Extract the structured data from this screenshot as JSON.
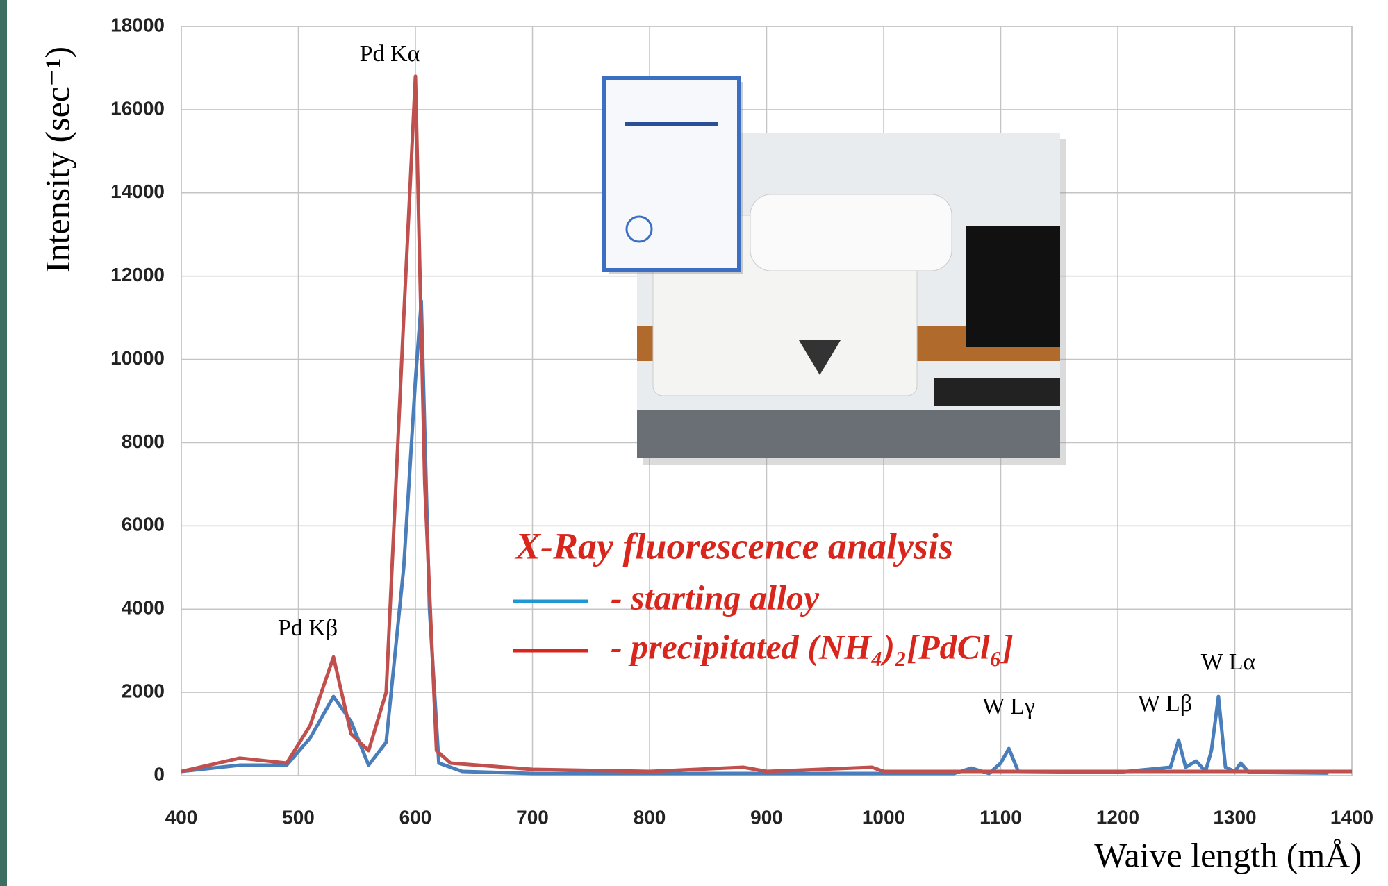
{
  "chart_data": {
    "type": "line",
    "xlabel": "Waive length (mÅ)",
    "ylabel": "Intensity (sec⁻¹)",
    "legend_title": "X-Ray fluorescence analysis",
    "annotations": [
      "Pd Kα",
      "Pd Kβ",
      "W Lγ",
      "W Lβ",
      "W Lα"
    ],
    "xlim": [
      400,
      1400
    ],
    "ylim": [
      0,
      18000
    ],
    "xticks": [
      400,
      500,
      600,
      700,
      800,
      900,
      1000,
      1100,
      1200,
      1300,
      1400
    ],
    "yticks": [
      0,
      2000,
      4000,
      6000,
      8000,
      10000,
      12000,
      14000,
      16000,
      18000
    ],
    "grid": true,
    "series": [
      {
        "name": "- starting alloy",
        "color": "#4a7ebb",
        "x": [
          400,
          450,
          490,
          510,
          530,
          545,
          560,
          575,
          590,
          600,
          605,
          612,
          620,
          640,
          700,
          800,
          900,
          1000,
          1060,
          1075,
          1090,
          1100,
          1107,
          1115,
          1200,
          1245,
          1252,
          1258,
          1267,
          1275,
          1280,
          1286,
          1292,
          1300,
          1305,
          1312,
          1380
        ],
        "values": [
          100,
          250,
          250,
          900,
          1900,
          1300,
          250,
          800,
          5000,
          9500,
          11400,
          4000,
          300,
          100,
          50,
          50,
          50,
          50,
          50,
          180,
          50,
          300,
          650,
          100,
          80,
          200,
          850,
          200,
          350,
          100,
          600,
          1900,
          200,
          100,
          300,
          80,
          60
        ]
      },
      {
        "name": "- precipitated (NH₄)₂[PdCl₆]",
        "color": "#c0504d",
        "x": [
          400,
          450,
          490,
          510,
          530,
          545,
          560,
          575,
          590,
          600,
          608,
          618,
          630,
          700,
          800,
          880,
          900,
          990,
          1000,
          1100,
          1200,
          1300,
          1400
        ],
        "values": [
          100,
          420,
          300,
          1200,
          2850,
          1000,
          600,
          2000,
          11000,
          16800,
          7000,
          600,
          300,
          150,
          100,
          200,
          100,
          200,
          100,
          100,
          100,
          100,
          100
        ]
      }
    ]
  }
}
